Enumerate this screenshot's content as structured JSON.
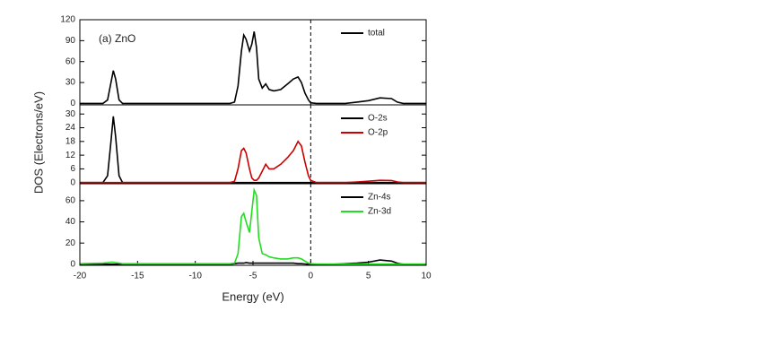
{
  "chart_data": [
    {
      "type": "line",
      "annotation": "(a) ZnO",
      "x": [
        -20,
        -18,
        -17.6,
        -17.3,
        -17.1,
        -16.9,
        -16.6,
        -16.3,
        -15,
        -10,
        -7,
        -6.6,
        -6.3,
        -6.0,
        -5.8,
        -5.6,
        -5.3,
        -5.1,
        -4.9,
        -4.7,
        -4.5,
        -4.2,
        -3.9,
        -3.6,
        -3.2,
        -2.6,
        -2.0,
        -1.5,
        -1.1,
        -0.8,
        -0.5,
        -0.2,
        0,
        0.5,
        2,
        3,
        4,
        5,
        6,
        7,
        7.5,
        8,
        10
      ],
      "series": [
        {
          "name": "total",
          "color": "#000000",
          "values": [
            0,
            0,
            5,
            30,
            47,
            35,
            5,
            0,
            0,
            0,
            0,
            2,
            25,
            75,
            98,
            92,
            75,
            85,
            103,
            80,
            35,
            22,
            28,
            20,
            18,
            20,
            28,
            35,
            38,
            30,
            15,
            5,
            1,
            0,
            0,
            0,
            2,
            4,
            8,
            7,
            2,
            0,
            0
          ]
        }
      ],
      "xlim": [
        -20,
        10
      ],
      "ylim": [
        -2,
        120
      ],
      "yticks": [
        0,
        30,
        60,
        90,
        120
      ],
      "vline": 0
    },
    {
      "type": "line",
      "ylabel": "DOS (Electrons/eV)",
      "x": [
        -20,
        -18,
        -17.6,
        -17.3,
        -17.1,
        -16.9,
        -16.6,
        -16.3,
        -15,
        -10,
        -7,
        -6.6,
        -6.3,
        -6.0,
        -5.8,
        -5.6,
        -5.3,
        -5.1,
        -4.9,
        -4.7,
        -4.5,
        -4.2,
        -3.9,
        -3.6,
        -3.2,
        -2.6,
        -2.0,
        -1.5,
        -1.1,
        -0.8,
        -0.5,
        -0.2,
        0,
        0.5,
        2,
        3,
        4,
        5,
        6,
        7,
        7.5,
        8,
        10
      ],
      "series": [
        {
          "name": "O-2s",
          "color": "#000000",
          "values": [
            0,
            0,
            3,
            18,
            29,
            20,
            3,
            0,
            0,
            0,
            0,
            0,
            0,
            0,
            0,
            0,
            0,
            0,
            0,
            0,
            0,
            0,
            0,
            0,
            0,
            0,
            0,
            0,
            0,
            0,
            0,
            0,
            0,
            0,
            0,
            0,
            0,
            0,
            0,
            0,
            0,
            0,
            0
          ]
        },
        {
          "name": "O-2p",
          "color": "#cc0000",
          "values": [
            0,
            0,
            0,
            0,
            0,
            0,
            0,
            0,
            0,
            0,
            0,
            0.5,
            6,
            14,
            15,
            13,
            6,
            2,
            1,
            1,
            2,
            5,
            8,
            6,
            6,
            8,
            11,
            14,
            18,
            16,
            9,
            3,
            1,
            0,
            0,
            0,
            0.3,
            0.6,
            1,
            0.9,
            0.3,
            0,
            0
          ]
        }
      ],
      "xlim": [
        -20,
        10
      ],
      "ylim": [
        -0.5,
        34
      ],
      "yticks": [
        0,
        6,
        12,
        18,
        24,
        30
      ],
      "vline": 0
    },
    {
      "type": "line",
      "xlabel": "Energy (eV)",
      "x": [
        -20,
        -18,
        -17.6,
        -17.3,
        -17.1,
        -16.9,
        -16.6,
        -16.3,
        -15,
        -10,
        -7,
        -6.6,
        -6.3,
        -6.0,
        -5.8,
        -5.6,
        -5.3,
        -5.1,
        -4.9,
        -4.7,
        -4.5,
        -4.2,
        -3.9,
        -3.6,
        -3.2,
        -2.6,
        -2.0,
        -1.5,
        -1.1,
        -0.8,
        -0.5,
        -0.2,
        0,
        0.5,
        2,
        3,
        4,
        5,
        6,
        7,
        7.5,
        8,
        10
      ],
      "series": [
        {
          "name": "Zn-4s",
          "color": "#000000",
          "values": [
            0,
            0,
            0,
            0,
            0,
            0,
            0,
            0,
            0,
            0,
            0,
            0.5,
            1,
            1,
            1,
            1.5,
            1,
            1,
            1,
            1,
            1,
            1,
            1,
            1,
            1,
            1,
            1,
            1,
            0.5,
            0.5,
            0.3,
            0,
            0,
            0,
            0,
            0.5,
            1,
            2,
            4,
            3,
            1,
            0,
            0
          ]
        },
        {
          "name": "Zn-3d",
          "color": "#22dd22",
          "values": [
            0.5,
            1,
            1.5,
            2,
            2,
            1.5,
            1,
            0.5,
            0.5,
            0.5,
            0.5,
            1,
            10,
            45,
            48,
            40,
            30,
            50,
            70,
            65,
            25,
            10,
            9,
            7,
            6,
            5,
            5,
            6,
            6,
            5,
            3,
            1,
            0.5,
            0.3,
            0.2,
            0.2,
            0.2,
            0.2,
            0.2,
            0.2,
            0.2,
            0.2,
            0.2
          ]
        }
      ],
      "xlim": [
        -20,
        10
      ],
      "ylim": [
        -1,
        76
      ],
      "yticks": [
        0,
        20,
        40,
        60
      ],
      "xticks": [
        -20,
        -15,
        -10,
        -5,
        0,
        5,
        10
      ],
      "vline": 0
    }
  ]
}
